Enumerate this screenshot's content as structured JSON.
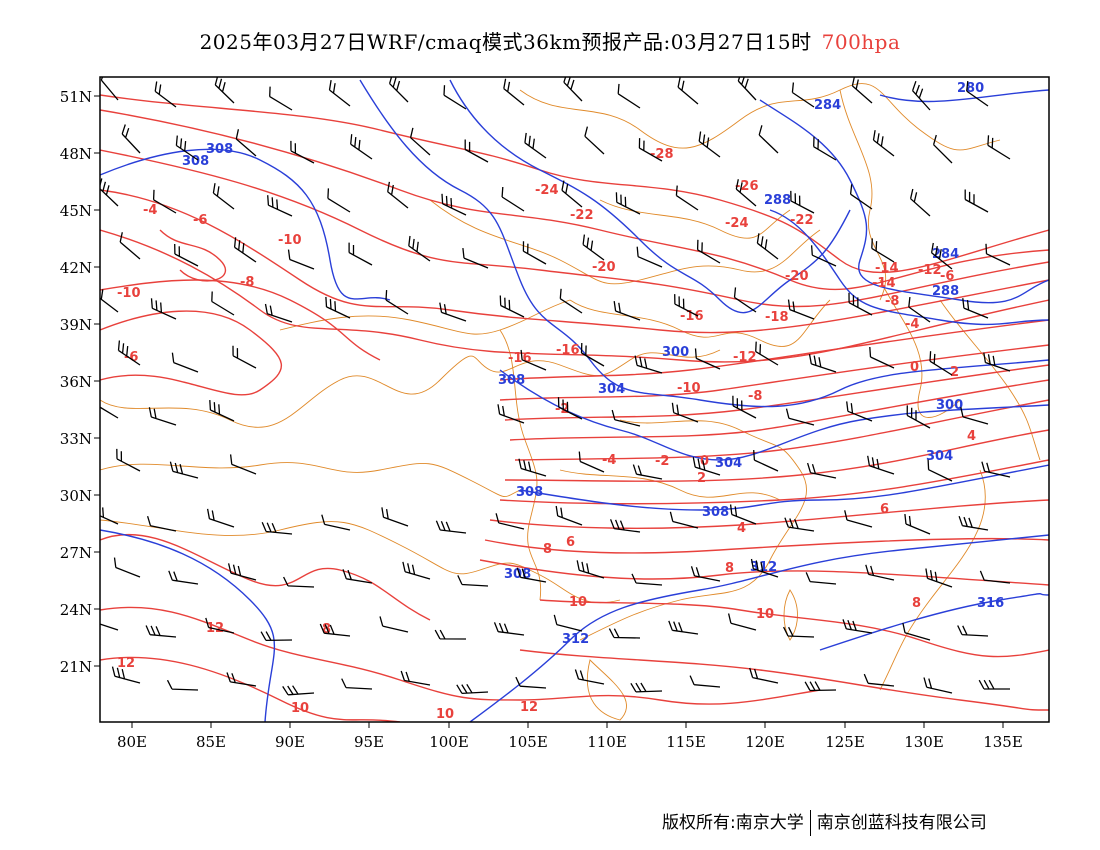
{
  "header": {
    "title": "2025年03月27日WRF/cmaq模式36km预报产品:03月27日15时",
    "level": "700hpa"
  },
  "footer": {
    "copyright": "版权所有:南京大学",
    "company": "南京创蓝科技有限公司"
  },
  "map": {
    "lon_ticks": [
      "80E",
      "85E",
      "90E",
      "95E",
      "100E",
      "105E",
      "110E",
      "115E",
      "120E",
      "125E",
      "130E",
      "135E"
    ],
    "lat_ticks": [
      "51N",
      "48N",
      "45N",
      "42N",
      "39N",
      "36N",
      "33N",
      "30N",
      "27N",
      "24N",
      "21N"
    ],
    "colors": {
      "temperature": "#e8413c",
      "geopotential": "#2a3fd8",
      "border": "#e08a2a",
      "barb": "#000000"
    },
    "temperature_labels": [
      "-28",
      "-26",
      "-24",
      "-24",
      "-22",
      "-22",
      "-20",
      "-20",
      "-18",
      "-16",
      "-16",
      "-16",
      "-14",
      "-14",
      "-12",
      "-12",
      "-10",
      "-10",
      "-10",
      "-8",
      "-8",
      "-8",
      "-6",
      "-6",
      "-6",
      "-4",
      "-4",
      "-4",
      "-2",
      "-2",
      "0",
      "0",
      "2",
      "2",
      "4",
      "4",
      "6",
      "6",
      "8",
      "8",
      "8",
      "8",
      "10",
      "10",
      "10",
      "10",
      "12",
      "12",
      "12"
    ],
    "geopotential_labels": [
      "308",
      "308",
      "284",
      "280",
      "288",
      "284",
      "288",
      "300",
      "304",
      "304",
      "308",
      "300",
      "304",
      "308",
      "308",
      "312",
      "312",
      "316",
      "308"
    ]
  }
}
